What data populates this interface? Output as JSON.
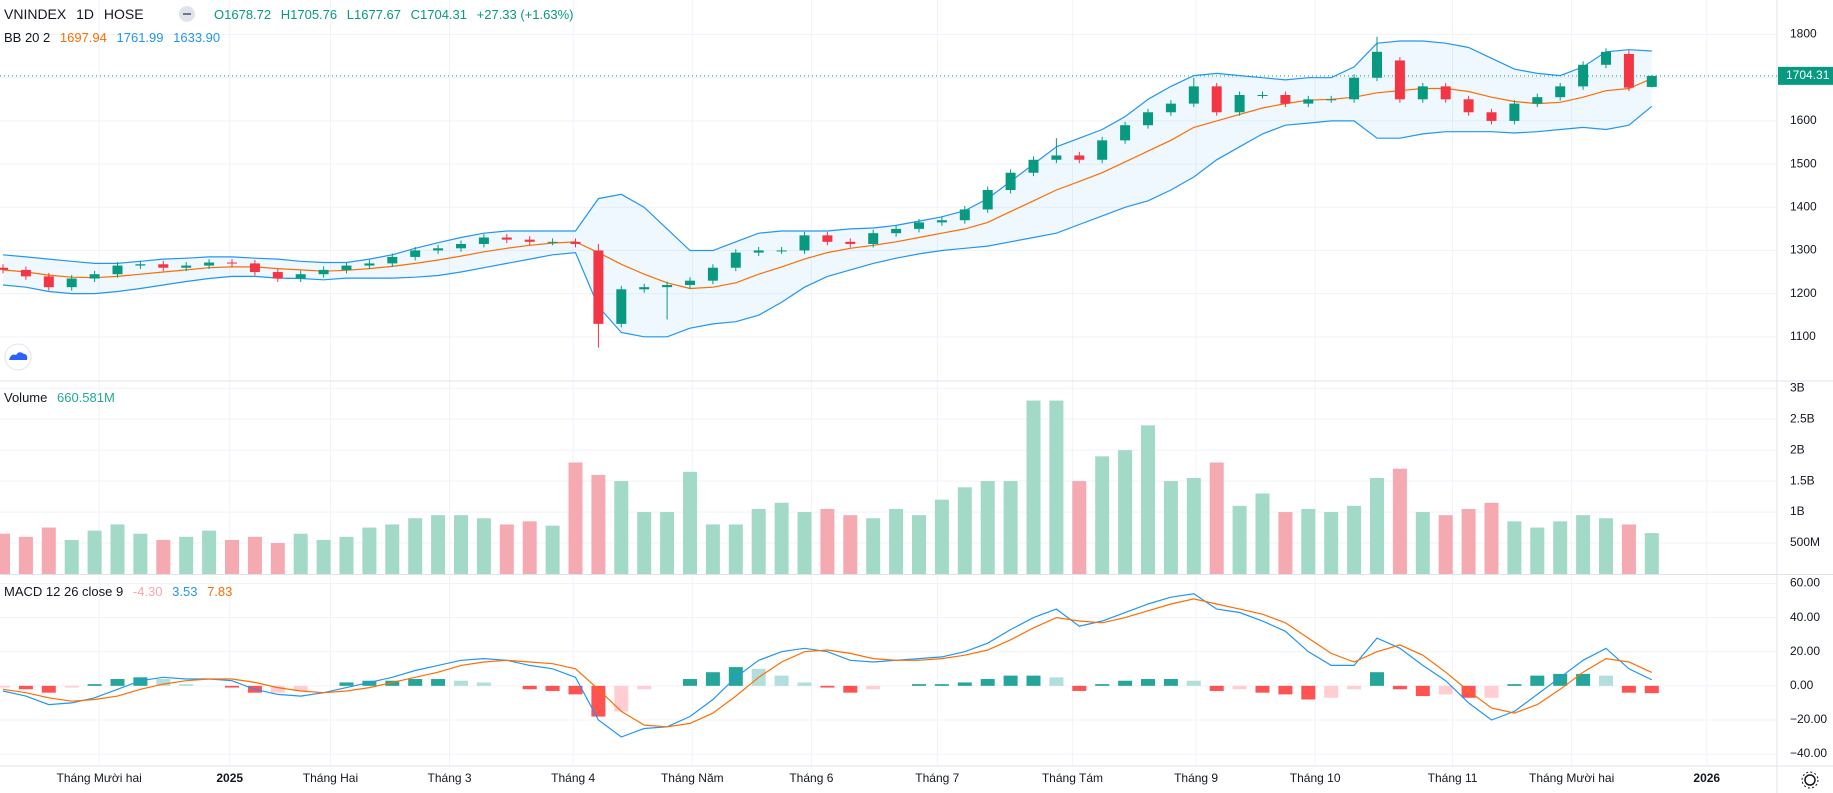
{
  "chart_data": {
    "type": "candlestick",
    "symbol": "VNINDEX",
    "interval": "1D",
    "exchange": "HOSE",
    "ohlc_letters": [
      "O",
      "H",
      "L",
      "C"
    ],
    "change": "+27.33 (+1.63%)",
    "up_color": "#089981",
    "down_color": "#f23645",
    "grid": true,
    "ylim": [
      1000,
      1880
    ],
    "yticks": [
      1100,
      1200,
      1300,
      1400,
      1500,
      1600,
      1700,
      1800
    ],
    "xticks": [
      {
        "value": 4.2,
        "label": "Tháng Mười hai"
      },
      {
        "value": 9.9,
        "label": "2025"
      },
      {
        "value": 14.3,
        "label": "Tháng Hai"
      },
      {
        "value": 19.5,
        "label": "Tháng 3"
      },
      {
        "value": 24.9,
        "label": "Tháng 4"
      },
      {
        "value": 30.1,
        "label": "Tháng Năm"
      },
      {
        "value": 35.3,
        "label": "Tháng 6"
      },
      {
        "value": 40.8,
        "label": "Tháng 7"
      },
      {
        "value": 46.7,
        "label": "Tháng Tám"
      },
      {
        "value": 52.1,
        "label": "Tháng 9"
      },
      {
        "value": 57.3,
        "label": "Tháng 10"
      },
      {
        "value": 63.3,
        "label": "Tháng 11"
      },
      {
        "value": 68.5,
        "label": "Tháng Mười hai"
      },
      {
        "value": 74.4,
        "label": "2026"
      }
    ],
    "candles": {
      "open": [
        1260,
        1255,
        1240,
        1215,
        1235,
        1245,
        1265,
        1268,
        1260,
        1265,
        1272,
        1270,
        1250,
        1235,
        1245,
        1255,
        1265,
        1270,
        1285,
        1300,
        1305,
        1315,
        1330,
        1325,
        1320,
        1320,
        1300,
        1130,
        1210,
        1215,
        1220,
        1230,
        1260,
        1295,
        1300,
        1300,
        1335,
        1320,
        1315,
        1340,
        1350,
        1365,
        1370,
        1395,
        1440,
        1480,
        1510,
        1520,
        1510,
        1555,
        1590,
        1620,
        1640,
        1680,
        1620,
        1660,
        1660,
        1640,
        1650,
        1650,
        1700,
        1740,
        1650,
        1680,
        1650,
        1620,
        1600,
        1640,
        1655,
        1680,
        1730,
        1755,
        1678.72
      ],
      "high": [
        1268,
        1263,
        1248,
        1243,
        1253,
        1273,
        1276,
        1276,
        1273,
        1280,
        1280,
        1278,
        1258,
        1253,
        1263,
        1273,
        1278,
        1293,
        1308,
        1313,
        1323,
        1338,
        1338,
        1333,
        1328,
        1328,
        1315,
        1218,
        1223,
        1228,
        1238,
        1268,
        1303,
        1308,
        1308,
        1343,
        1343,
        1328,
        1348,
        1358,
        1373,
        1378,
        1403,
        1448,
        1488,
        1518,
        1560,
        1528,
        1563,
        1598,
        1628,
        1648,
        1700,
        1688,
        1668,
        1668,
        1668,
        1658,
        1658,
        1708,
        1795,
        1748,
        1688,
        1688,
        1658,
        1628,
        1648,
        1663,
        1688,
        1738,
        1768,
        1763,
        1705.76
      ],
      "low": [
        1247,
        1232,
        1207,
        1207,
        1227,
        1237,
        1257,
        1252,
        1252,
        1257,
        1262,
        1242,
        1227,
        1227,
        1237,
        1247,
        1257,
        1262,
        1277,
        1292,
        1297,
        1307,
        1317,
        1312,
        1312,
        1307,
        1075,
        1122,
        1202,
        1140,
        1212,
        1222,
        1252,
        1287,
        1292,
        1292,
        1312,
        1307,
        1307,
        1332,
        1342,
        1357,
        1362,
        1387,
        1432,
        1472,
        1502,
        1502,
        1502,
        1547,
        1582,
        1612,
        1632,
        1612,
        1612,
        1652,
        1632,
        1632,
        1642,
        1642,
        1692,
        1642,
        1642,
        1642,
        1612,
        1592,
        1592,
        1632,
        1647,
        1672,
        1722,
        1669,
        1677.67
      ],
      "close": [
        1255,
        1240,
        1215,
        1235,
        1245,
        1265,
        1268,
        1260,
        1265,
        1272,
        1270,
        1250,
        1235,
        1245,
        1255,
        1265,
        1270,
        1285,
        1300,
        1305,
        1315,
        1330,
        1325,
        1320,
        1320,
        1315,
        1130,
        1210,
        1215,
        1220,
        1230,
        1260,
        1295,
        1300,
        1300,
        1335,
        1320,
        1315,
        1340,
        1350,
        1365,
        1370,
        1395,
        1440,
        1480,
        1510,
        1520,
        1510,
        1555,
        1590,
        1620,
        1640,
        1680,
        1620,
        1660,
        1660,
        1640,
        1650,
        1650,
        1700,
        1760,
        1650,
        1680,
        1650,
        1620,
        1600,
        1640,
        1655,
        1680,
        1730,
        1760,
        1676.98,
        1704.31
      ]
    },
    "bollinger": {
      "name": "BB 20 2",
      "fill": "rgba(33,150,243,0.07)",
      "series": [
        {
          "color": "#ff6d00",
          "values": [
            1255,
            1250,
            1243,
            1238,
            1237,
            1240,
            1245,
            1250,
            1255,
            1260,
            1262,
            1262,
            1258,
            1255,
            1252,
            1254,
            1258,
            1263,
            1270,
            1278,
            1287,
            1297,
            1305,
            1312,
            1317,
            1320,
            1295,
            1268,
            1245,
            1225,
            1212,
            1215,
            1225,
            1245,
            1262,
            1280,
            1295,
            1305,
            1312,
            1320,
            1330,
            1340,
            1350,
            1365,
            1390,
            1415,
            1440,
            1460,
            1480,
            1505,
            1530,
            1555,
            1585,
            1600,
            1615,
            1630,
            1640,
            1648,
            1650,
            1655,
            1665,
            1670,
            1675,
            1675,
            1668,
            1655,
            1645,
            1640,
            1643,
            1655,
            1670,
            1675,
            1697.94
          ]
        },
        {
          "color": "#2196f3",
          "values": [
            1290,
            1285,
            1280,
            1275,
            1270,
            1270,
            1275,
            1280,
            1282,
            1285,
            1285,
            1282,
            1280,
            1275,
            1272,
            1272,
            1280,
            1290,
            1305,
            1318,
            1330,
            1340,
            1345,
            1345,
            1345,
            1345,
            1420,
            1430,
            1400,
            1350,
            1300,
            1300,
            1320,
            1340,
            1345,
            1345,
            1345,
            1350,
            1352,
            1358,
            1368,
            1378,
            1392,
            1420,
            1460,
            1500,
            1540,
            1560,
            1580,
            1610,
            1650,
            1680,
            1705,
            1710,
            1705,
            1700,
            1695,
            1700,
            1700,
            1725,
            1780,
            1785,
            1785,
            1780,
            1770,
            1745,
            1720,
            1710,
            1705,
            1725,
            1760,
            1765,
            1761.99
          ]
        },
        {
          "color": "#2196f3",
          "last_label": "1633.90",
          "values": [
            1220,
            1215,
            1205,
            1200,
            1200,
            1205,
            1212,
            1220,
            1228,
            1235,
            1240,
            1240,
            1236,
            1235,
            1232,
            1236,
            1236,
            1236,
            1238,
            1242,
            1250,
            1260,
            1270,
            1280,
            1290,
            1295,
            1170,
            1110,
            1100,
            1100,
            1120,
            1130,
            1135,
            1150,
            1180,
            1215,
            1240,
            1255,
            1270,
            1282,
            1292,
            1300,
            1305,
            1310,
            1320,
            1330,
            1340,
            1360,
            1380,
            1400,
            1415,
            1440,
            1470,
            1510,
            1540,
            1570,
            1590,
            1595,
            1600,
            1600,
            1560,
            1560,
            1570,
            1575,
            1575,
            1575,
            1572,
            1575,
            1580,
            1585,
            1580,
            1590,
            1633.9
          ]
        }
      ]
    },
    "volume": {
      "name": "Volume",
      "last_label": "660.581M",
      "label_color": "#22ab94",
      "up_color": "#a3d9c7",
      "down_color": "#f5a9b0",
      "ylim": [
        0,
        3100000000
      ],
      "yticks": [
        {
          "value": 500000000,
          "label": "500M"
        },
        {
          "value": 1000000000,
          "label": "1B"
        },
        {
          "value": 1500000000,
          "label": "1.5B"
        },
        {
          "value": 2000000000,
          "label": "2B"
        },
        {
          "value": 2500000000,
          "label": "2.5B"
        },
        {
          "value": 3000000000,
          "label": "3B"
        }
      ],
      "values": [
        650000000,
        600000000,
        750000000,
        550000000,
        700000000,
        800000000,
        650000000,
        550000000,
        600000000,
        700000000,
        550000000,
        600000000,
        500000000,
        650000000,
        550000000,
        600000000,
        750000000,
        800000000,
        900000000,
        950000000,
        950000000,
        900000000,
        800000000,
        850000000,
        780000000,
        1800000000,
        1600000000,
        1500000000,
        1000000000,
        1000000000,
        1650000000,
        800000000,
        800000000,
        1050000000,
        1150000000,
        1000000000,
        1050000000,
        950000000,
        900000000,
        1050000000,
        950000000,
        1200000000,
        1400000000,
        1500000000,
        1500000000,
        2800000000,
        2800000000,
        1500000000,
        1900000000,
        2000000000,
        2400000000,
        1500000000,
        1550000000,
        1800000000,
        1100000000,
        1300000000,
        1000000000,
        1050000000,
        1000000000,
        1100000000,
        1550000000,
        1700000000,
        1000000000,
        950000000,
        1050000000,
        1150000000,
        850000000,
        750000000,
        850000000,
        950000000,
        900000000,
        800000000,
        660581000
      ]
    },
    "macd": {
      "name": "MACD 12 26 close 9",
      "ylim": [
        -47,
        65
      ],
      "yticks": [
        {
          "value": 60,
          "label": "60.00"
        },
        {
          "value": 40,
          "label": "40.00"
        },
        {
          "value": 20,
          "label": "20.00"
        },
        {
          "value": 0,
          "label": "0.00"
        },
        {
          "value": -20,
          "label": "−20.00"
        },
        {
          "value": -40,
          "label": "−40.00"
        }
      ],
      "histogram": {
        "last_label": "-4.30",
        "label_color": "#f7a5ac",
        "colors": [
          "#26a69a",
          "#b2dfdb",
          "#ffcdd2",
          "#ff5252"
        ],
        "values": [
          -1,
          -2,
          -4,
          -1,
          1,
          4,
          5,
          4,
          1,
          0,
          -1,
          -4,
          -4,
          -3,
          0,
          2,
          3,
          3,
          4,
          4,
          3,
          2,
          0,
          -2,
          -3,
          -5,
          -18,
          -15,
          -2,
          0,
          4,
          8,
          11,
          10,
          6,
          2,
          -1,
          -4,
          -2,
          0,
          1,
          1,
          2,
          4,
          6,
          6,
          5,
          -3,
          1,
          3,
          4,
          4,
          3,
          -3,
          -2,
          -4,
          -5,
          -8,
          -7,
          -2,
          8,
          -2,
          -6,
          -5,
          -7,
          -7,
          1,
          6,
          7,
          7,
          6,
          -4,
          -4.3
        ]
      },
      "series": [
        {
          "color": "#2196f3",
          "values": [
            -3,
            -6,
            -11,
            -10,
            -7,
            -2,
            3,
            5,
            4,
            4,
            3,
            -2,
            -5,
            -6,
            -4,
            -1,
            2,
            5,
            9,
            12,
            15,
            16,
            15,
            12,
            10,
            5,
            -20,
            -30,
            -25,
            -24,
            -18,
            -8,
            5,
            15,
            20,
            22,
            20,
            15,
            14,
            15,
            16,
            17,
            20,
            25,
            33,
            40,
            45,
            35,
            38,
            43,
            48,
            52,
            54,
            45,
            43,
            38,
            32,
            20,
            12,
            12,
            28,
            22,
            12,
            3,
            -10,
            -20,
            -15,
            -5,
            5,
            15,
            22,
            10,
            3.53
          ]
        },
        {
          "color": "#ff6d00",
          "values": [
            -2,
            -4,
            -7,
            -9,
            -8,
            -6,
            -2,
            1,
            3,
            4,
            4,
            2,
            -1,
            -3,
            -4,
            -3,
            -1,
            2,
            5,
            8,
            12,
            14,
            15,
            14,
            13,
            10,
            -2,
            -15,
            -23,
            -24,
            -22,
            -16,
            -6,
            5,
            14,
            20,
            21,
            19,
            16,
            15,
            15,
            16,
            18,
            21,
            27,
            34,
            40,
            38,
            37,
            40,
            44,
            48,
            51,
            48,
            45,
            42,
            37,
            28,
            19,
            14,
            20,
            24,
            18,
            8,
            -3,
            -13,
            -16,
            -11,
            -2,
            8,
            16,
            14,
            7.83
          ]
        }
      ]
    }
  }
}
